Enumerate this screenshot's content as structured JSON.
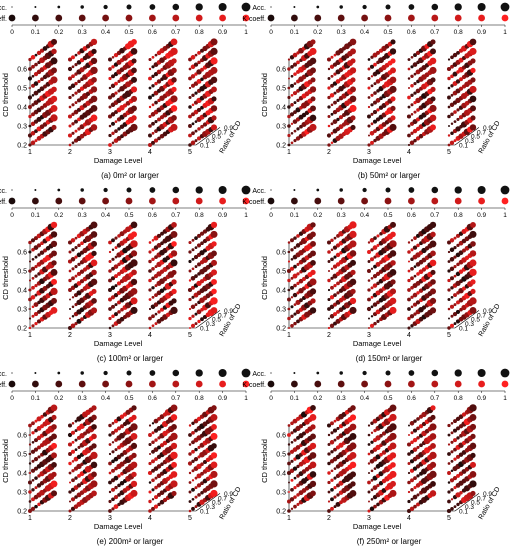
{
  "chart_data": [
    {
      "type": "scatter",
      "caption": "(a) 0m² or larger",
      "seed": 1
    },
    {
      "type": "scatter",
      "caption": "(b) 50m² or larger",
      "seed": 2
    },
    {
      "type": "scatter",
      "caption": "(c) 100m² or larger",
      "seed": 3
    },
    {
      "type": "scatter",
      "caption": "(d) 150m² or larger",
      "seed": 4
    },
    {
      "type": "scatter",
      "caption": "(e) 200m² or larger",
      "seed": 5
    },
    {
      "type": "scatter",
      "caption": "(f) 250m² or larger",
      "seed": 6
    }
  ],
  "legend": {
    "acc_label": "Acc.",
    "k_label": "K coeff.",
    "scale_ticks": [
      "0",
      "0.1",
      "0.2",
      "0.3",
      "0.4",
      "0.5",
      "0.6",
      "0.7",
      "0.8",
      "0.9",
      "1"
    ]
  },
  "axes": {
    "xlabel": "Damage Level",
    "ylabel": "CD threshold",
    "zlabel": "Ratio of CD",
    "x_ticks": [
      "1",
      "2",
      "3",
      "4",
      "5"
    ],
    "y_ticks": [
      "0.2",
      "0.3",
      "0.4",
      "0.5",
      "0.6"
    ],
    "z_ticks": [
      "0.1",
      "0.3",
      "0.5",
      "0.7",
      "0.9"
    ],
    "x_values": [
      1,
      2,
      3,
      4,
      5
    ],
    "y_values": [
      0.2,
      0.25,
      0.3,
      0.35,
      0.4,
      0.45,
      0.5,
      0.55,
      0.6,
      0.65
    ],
    "z_values": [
      0.1,
      0.2,
      0.3,
      0.4,
      0.5,
      0.6,
      0.7,
      0.8,
      0.9
    ]
  },
  "colors": {
    "low": "#1a0a0a",
    "mid": "#8b1212",
    "high": "#ff2020"
  }
}
